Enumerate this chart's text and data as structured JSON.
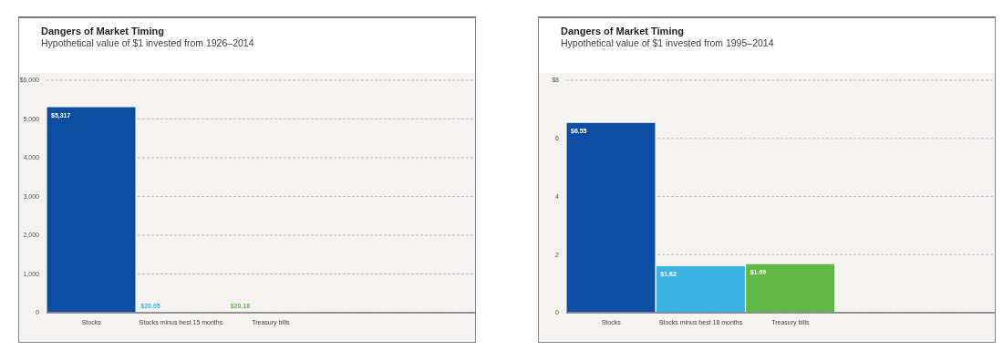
{
  "chart_data": [
    {
      "type": "bar",
      "title": "Dangers of Market Timing",
      "subtitle": "Hypothetical value of $1 invested from 1926–2014",
      "categories": [
        "Stocks",
        "Stocks minus best 15 months",
        "Treasury bills"
      ],
      "values": [
        5317,
        20.05,
        20.18
      ],
      "colors": [
        "#0b4ea2",
        "#3bb3e4",
        "#62b847"
      ],
      "value_labels": [
        "$5,317",
        "$20.05",
        "$20.18"
      ],
      "ylim": [
        0,
        6000
      ],
      "yticks": [
        {
          "value": 0,
          "label": "0"
        },
        {
          "value": 1000,
          "label": "1,000"
        },
        {
          "value": 2000,
          "label": "2,000"
        },
        {
          "value": 3000,
          "label": "3,000"
        },
        {
          "value": 4000,
          "label": "4,000"
        },
        {
          "value": 5000,
          "label": "5,000"
        },
        {
          "value": 6000,
          "label": "$6,000"
        }
      ],
      "grid": "y",
      "legend": false
    },
    {
      "type": "bar",
      "title": "Dangers of Market Timing",
      "subtitle": "Hypothetical value of $1 invested from 1995–2014",
      "categories": [
        "Stocks",
        "Stocks minus best 18 months",
        "Treasury bills"
      ],
      "values": [
        6.55,
        1.62,
        1.69
      ],
      "colors": [
        "#0b4ea2",
        "#3bb3e4",
        "#62b847"
      ],
      "value_labels": [
        "$6.55",
        "$1.62",
        "$1.69"
      ],
      "ylim": [
        0,
        8
      ],
      "yticks": [
        {
          "value": 0,
          "label": "0"
        },
        {
          "value": 2,
          "label": "2"
        },
        {
          "value": 4,
          "label": "4"
        },
        {
          "value": 6,
          "label": "6"
        },
        {
          "value": 8,
          "label": "$8"
        }
      ],
      "grid": "y",
      "legend": false
    }
  ]
}
